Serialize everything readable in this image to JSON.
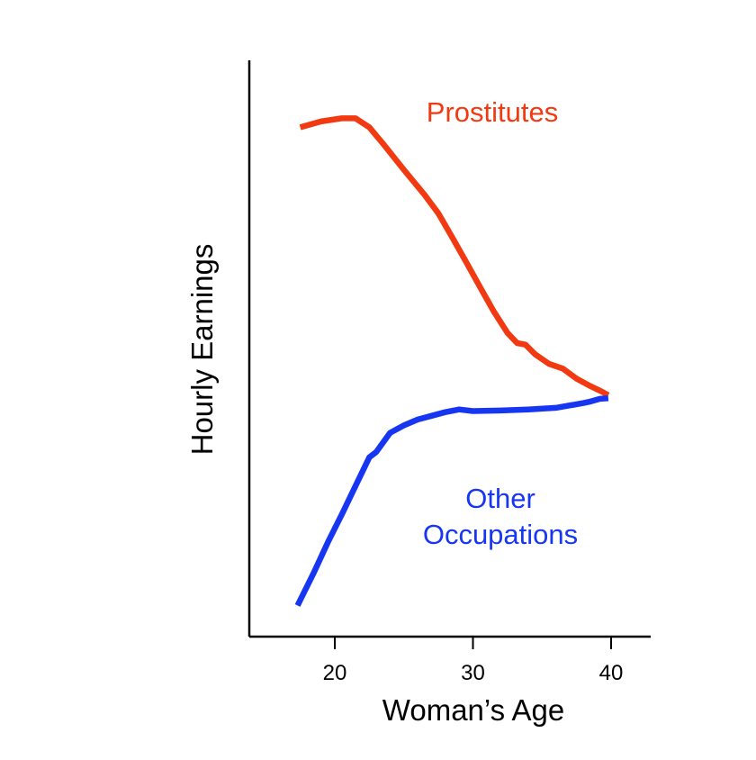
{
  "chart_data": {
    "type": "line",
    "title": "",
    "xlabel": "Woman’s Age",
    "ylabel": "Hourly Earnings",
    "xlim": [
      14.5,
      43
    ],
    "ylim": [
      0,
      100
    ],
    "x_ticks": [
      20,
      30,
      40
    ],
    "x_tick_labels": [
      "20",
      "30",
      "40"
    ],
    "grid": false,
    "legend": "none",
    "series": [
      {
        "name": "Prostitutes",
        "color": "#f23a12",
        "label_lines": [
          "Prostitutes"
        ],
        "x": [
          17.5,
          19,
          20.5,
          21.5,
          22.5,
          23.5,
          25,
          26.5,
          27.5,
          28.5,
          29.5,
          30.5,
          31.5,
          32.5,
          33.2,
          33.8,
          34.5,
          35.5,
          36.5,
          37.5,
          38.5,
          39.3,
          39.8
        ],
        "y": [
          92.3,
          93.4,
          94.0,
          94.0,
          92.3,
          89.2,
          84.3,
          79.6,
          76.1,
          71.6,
          67.0,
          62.3,
          57.7,
          53.6,
          51.7,
          51.4,
          49.6,
          47.8,
          46.9,
          45.0,
          43.6,
          42.6,
          41.9
        ]
      },
      {
        "name": "Other Occupations",
        "color": "#1736f2",
        "label_lines": [
          "Other",
          "Occupations"
        ],
        "x": [
          17.3,
          18.5,
          19.5,
          20.5,
          21.5,
          22.5,
          23,
          24,
          25,
          26,
          27,
          28,
          29,
          30,
          32,
          34,
          36,
          38,
          38.5,
          39.2,
          39.8
        ],
        "y": [
          2.3,
          8.6,
          14.2,
          19.4,
          24.8,
          30.2,
          31.2,
          34.8,
          36.2,
          37.3,
          38.0,
          38.7,
          39.2,
          38.9,
          39.0,
          39.2,
          39.5,
          40.4,
          40.7,
          41.2,
          41.3
        ]
      }
    ]
  }
}
